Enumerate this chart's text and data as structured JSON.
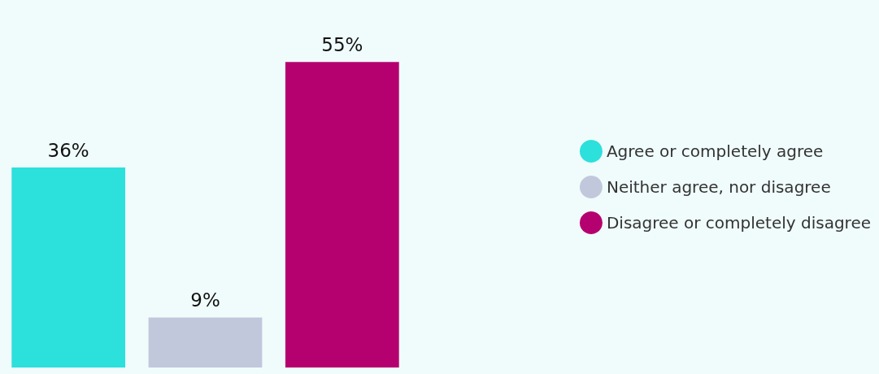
{
  "chart_data": {
    "type": "bar",
    "categories": [
      null,
      null,
      null
    ],
    "stacked": true,
    "series": [
      {
        "name": "Agree or completely agree",
        "color": "#2ce0dc",
        "values": [
          36,
          null,
          null
        ],
        "value_labels": [
          "36%",
          null,
          null
        ]
      },
      {
        "name": "Neither agree, nor disagree",
        "color": "#c1c8dc",
        "values": [
          null,
          9,
          null
        ],
        "value_labels": [
          null,
          "9%",
          null
        ]
      },
      {
        "name": "Disagree or completely disagree",
        "color": "#b5006f",
        "values": [
          null,
          null,
          55
        ],
        "value_labels": [
          null,
          null,
          "55%"
        ]
      }
    ],
    "legend": "right"
  }
}
